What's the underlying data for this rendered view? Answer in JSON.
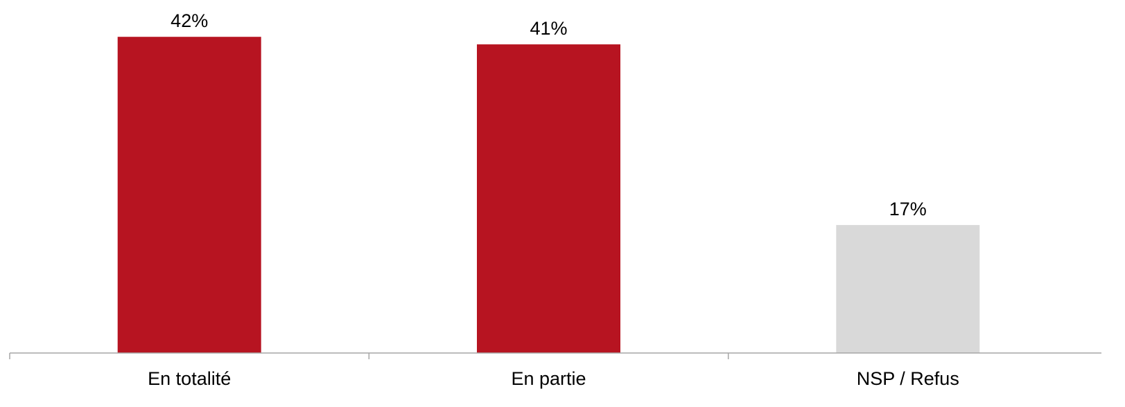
{
  "chart_data": {
    "type": "bar",
    "title": "",
    "xlabel": "",
    "ylabel": "",
    "categories": [
      "En totalité",
      "En partie",
      "NSP / Refus"
    ],
    "values": [
      42,
      41,
      17
    ],
    "value_labels": [
      "42%",
      "41%",
      "17%"
    ],
    "unit": "%",
    "ylim": [
      0,
      44.5
    ],
    "colors": [
      "#B71421",
      "#B71421",
      "#D9D9D9"
    ],
    "grid": false,
    "legend": "none"
  },
  "colors": {
    "accent": "#B71421",
    "neutral": "#D9D9D9",
    "axis": "#A6A6A6",
    "background": "#FFFFFF"
  }
}
